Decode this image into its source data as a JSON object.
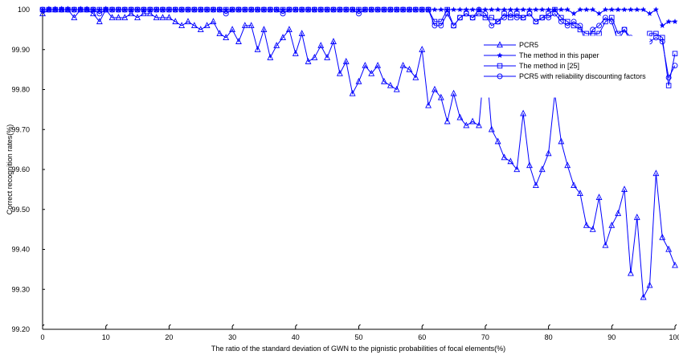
{
  "chart_data": {
    "type": "line",
    "title": "",
    "xlabel": "The ratio of the standard deviation  of GWN to the pignistic probabilities of focal elements(%)",
    "ylabel": "Correct recognition rates(%)",
    "xlim": [
      0,
      100
    ],
    "ylim": [
      99.2,
      100
    ],
    "xticks": [
      0,
      10,
      20,
      30,
      40,
      50,
      60,
      70,
      80,
      90,
      100
    ],
    "xtick_labels": [
      "0",
      "10",
      "20",
      "30",
      "40",
      "50",
      "60",
      "70",
      "80",
      "90",
      "100"
    ],
    "yticks": [
      99.2,
      99.3,
      99.4,
      99.5,
      99.6,
      99.7,
      99.8,
      99.9,
      100
    ],
    "ytick_labels": [
      "99.20",
      "99.30",
      "99.40",
      "99.50",
      "99.60",
      "99.70",
      "99.80",
      "99.90",
      "100"
    ],
    "grid": false,
    "legend_position": "right",
    "colors": {
      "line": "#0000ff",
      "axis": "#000000"
    },
    "x": [
      0,
      1,
      2,
      3,
      4,
      5,
      6,
      7,
      8,
      9,
      10,
      11,
      12,
      13,
      14,
      15,
      16,
      17,
      18,
      19,
      20,
      21,
      22,
      23,
      24,
      25,
      26,
      27,
      28,
      29,
      30,
      31,
      32,
      33,
      34,
      35,
      36,
      37,
      38,
      39,
      40,
      41,
      42,
      43,
      44,
      45,
      46,
      47,
      48,
      49,
      50,
      51,
      52,
      53,
      54,
      55,
      56,
      57,
      58,
      59,
      60,
      61,
      62,
      63,
      64,
      65,
      66,
      67,
      68,
      69,
      70,
      71,
      72,
      73,
      74,
      75,
      76,
      77,
      78,
      79,
      80,
      81,
      82,
      83,
      84,
      85,
      86,
      87,
      88,
      89,
      90,
      91,
      92,
      93,
      94,
      95,
      96,
      97,
      98,
      99,
      100
    ],
    "series": [
      {
        "name": "PCR5",
        "marker": "triangle",
        "values": [
          99.99,
          100,
          100,
          100,
          100,
          99.98,
          100,
          100,
          99.99,
          99.97,
          100,
          99.98,
          99.98,
          99.98,
          99.99,
          99.98,
          99.99,
          99.99,
          99.98,
          99.98,
          99.98,
          99.97,
          99.96,
          99.97,
          99.96,
          99.95,
          99.96,
          99.97,
          99.94,
          99.93,
          99.95,
          99.92,
          99.96,
          99.96,
          99.9,
          99.95,
          99.88,
          99.91,
          99.93,
          99.95,
          99.89,
          99.94,
          99.87,
          99.88,
          99.91,
          99.88,
          99.92,
          99.84,
          99.87,
          99.79,
          99.82,
          99.86,
          99.84,
          99.86,
          99.82,
          99.81,
          99.8,
          99.86,
          99.85,
          99.83,
          99.9,
          99.76,
          99.8,
          99.78,
          99.72,
          99.79,
          99.73,
          99.71,
          99.72,
          99.71,
          99.89,
          99.7,
          99.67,
          99.63,
          99.62,
          99.6,
          99.74,
          99.61,
          99.56,
          99.6,
          99.64,
          99.79,
          99.67,
          99.61,
          99.56,
          99.54,
          99.46,
          99.45,
          99.53,
          99.41,
          99.46,
          99.49,
          99.55,
          99.34,
          99.48,
          99.28,
          99.31,
          99.59,
          99.43,
          99.4,
          99.36
        ]
      },
      {
        "name": "The method in this paper",
        "marker": "star",
        "values": [
          100,
          100,
          100,
          100,
          100,
          100,
          100,
          100,
          100,
          100,
          100,
          100,
          100,
          100,
          100,
          100,
          100,
          100,
          100,
          100,
          100,
          100,
          100,
          100,
          100,
          100,
          100,
          100,
          100,
          100,
          100,
          100,
          100,
          100,
          100,
          100,
          100,
          100,
          100,
          100,
          100,
          100,
          100,
          100,
          100,
          100,
          100,
          100,
          100,
          100,
          100,
          100,
          100,
          100,
          100,
          100,
          100,
          100,
          100,
          100,
          100,
          100,
          100,
          100,
          100,
          100,
          100,
          100,
          100,
          100,
          100,
          100,
          100,
          100,
          100,
          100,
          100,
          100,
          100,
          100,
          100,
          100,
          100,
          100,
          99.99,
          100,
          100,
          100,
          99.99,
          100,
          100,
          100,
          100,
          100,
          100,
          100,
          99.99,
          100,
          99.96,
          99.97,
          99.97
        ]
      },
      {
        "name": "The method in [25]",
        "marker": "square",
        "values": [
          100,
          100,
          100,
          100,
          100,
          100,
          100,
          100,
          100,
          100,
          100,
          100,
          100,
          100,
          100,
          100,
          100,
          100,
          100,
          100,
          100,
          100,
          100,
          100,
          100,
          100,
          100,
          100,
          100,
          100,
          100,
          100,
          100,
          100,
          100,
          100,
          100,
          100,
          100,
          100,
          100,
          100,
          100,
          100,
          100,
          100,
          100,
          100,
          100,
          100,
          100,
          100,
          100,
          100,
          100,
          100,
          100,
          100,
          100,
          100,
          100,
          100,
          99.97,
          99.97,
          100,
          99.96,
          99.98,
          99.99,
          99.98,
          99.99,
          99.98,
          99.98,
          99.97,
          99.99,
          99.98,
          99.99,
          99.98,
          99.99,
          99.97,
          99.98,
          99.99,
          100,
          99.98,
          99.97,
          99.96,
          99.95,
          99.94,
          99.94,
          99.94,
          99.97,
          99.98,
          99.94,
          99.95,
          99.92,
          99.92,
          99.88,
          99.94,
          99.94,
          99.93,
          99.81,
          99.89
        ]
      },
      {
        "name": "PCR5 with reliability discounting factors",
        "marker": "circle",
        "values": [
          100,
          100,
          100,
          100,
          100,
          100,
          100,
          100,
          100,
          99.99,
          100,
          100,
          100,
          100,
          100,
          100,
          100,
          100,
          100,
          100,
          100,
          100,
          100,
          100,
          100,
          100,
          100,
          100,
          100,
          99.99,
          100,
          100,
          100,
          100,
          100,
          100,
          100,
          100,
          99.99,
          100,
          100,
          100,
          100,
          100,
          100,
          100,
          100,
          100,
          100,
          100,
          99.99,
          100,
          100,
          100,
          100,
          100,
          100,
          100,
          100,
          100,
          100,
          100,
          99.96,
          99.96,
          99.99,
          99.96,
          99.98,
          99.99,
          99.98,
          100,
          99.99,
          99.96,
          99.97,
          99.98,
          99.99,
          99.98,
          99.98,
          99.99,
          99.97,
          99.98,
          99.98,
          99.99,
          99.97,
          99.96,
          99.97,
          99.96,
          99.91,
          99.95,
          99.96,
          99.98,
          99.97,
          99.92,
          99.95,
          99.93,
          99.92,
          99.87,
          99.92,
          99.93,
          99.92,
          99.83,
          99.86
        ]
      }
    ]
  }
}
